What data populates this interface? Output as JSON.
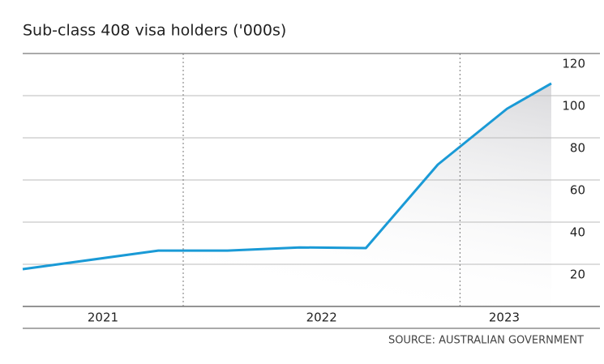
{
  "chart_data": {
    "type": "line",
    "title": "Sub-class 408 visa holders ('000s)",
    "source": "SOURCE: AUSTRALIAN GOVERNMENT",
    "x": [
      2021.42,
      2021.91,
      2022.16,
      2022.42,
      2022.66,
      2022.92,
      2023.17,
      2023.33
    ],
    "series": [
      {
        "name": "Sub-class 408 visa holders",
        "color": "#1a9ad6",
        "values": [
          17.7,
          26.5,
          26.5,
          28,
          27.7,
          67.3,
          93.8,
          105.8
        ]
      }
    ],
    "xlim": [
      2021.42,
      2023.33
    ],
    "xticks": [
      {
        "value": 2021.71,
        "label": "2021"
      },
      {
        "value": 2022.5,
        "label": "2022"
      },
      {
        "value": 2023.16,
        "label": "2023"
      }
    ],
    "ylim": [
      0,
      120
    ],
    "yticks": [
      20,
      40,
      60,
      80,
      100,
      120
    ],
    "grid": true
  }
}
